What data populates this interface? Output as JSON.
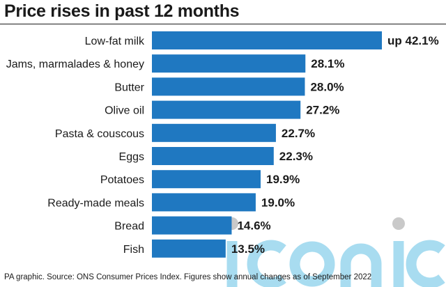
{
  "chart_data": {
    "type": "bar",
    "orientation": "horizontal",
    "title": "Price rises in past 12 months",
    "categories": [
      "Low-fat milk",
      "Jams, marmalades & honey",
      "Butter",
      "Olive oil",
      "Pasta & couscous",
      "Eggs",
      "Potatoes",
      "Ready-made meals",
      "Bread",
      "Fish"
    ],
    "values": [
      42.1,
      28.1,
      28.0,
      27.2,
      22.7,
      22.3,
      19.9,
      19.0,
      14.6,
      13.5
    ],
    "value_labels": [
      "up 42.1%",
      "28.1%",
      "28.0%",
      "27.2%",
      "22.7%",
      "22.3%",
      "19.9%",
      "19.0%",
      "14.6%",
      "13.5%"
    ],
    "bar_color": "#1f78c1",
    "xlim": [
      0,
      42.1
    ],
    "grid": false,
    "source": "PA graphic. Source: ONS Consumer Prices Index. Figures show annual changes as of September 2022"
  },
  "watermark": {
    "text": "iconic",
    "color": "#a8dcf0"
  }
}
